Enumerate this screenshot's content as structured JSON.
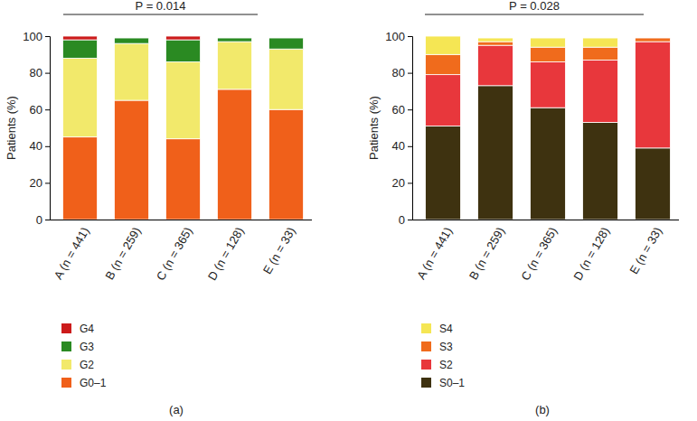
{
  "chart_data": [
    {
      "type": "bar",
      "stacked": true,
      "panel_label": "(a)",
      "annotation": "P = 0.014",
      "y_label": "Patients (%)",
      "categories": [
        "A (n = 441)",
        "B (n = 259)",
        "C (n = 365)",
        "D (n = 128)",
        "E (n = 33)"
      ],
      "series": [
        {
          "name": "G0–1",
          "color": "#f0601a",
          "values": [
            45,
            65,
            44,
            71,
            60
          ]
        },
        {
          "name": "G2",
          "color": "#f2e96b",
          "values": [
            43,
            31,
            42,
            26,
            33
          ]
        },
        {
          "name": "G3",
          "color": "#2a8a22",
          "values": [
            10,
            3,
            12,
            2,
            6
          ]
        },
        {
          "name": "G4",
          "color": "#cc1b1b",
          "values": [
            2,
            0,
            2,
            0,
            0
          ]
        }
      ],
      "ylim": [
        0,
        100
      ],
      "yticks": [
        0,
        20,
        40,
        60,
        80,
        100
      ]
    },
    {
      "type": "bar",
      "stacked": true,
      "panel_label": "(b)",
      "annotation": "P = 0.028",
      "y_label": "Patients (%)",
      "categories": [
        "A (n = 441)",
        "B (n = 259)",
        "C (n = 365)",
        "D (n = 128)",
        "E (n = 33)"
      ],
      "series": [
        {
          "name": "S0–1",
          "color": "#3e3210",
          "values": [
            51,
            73,
            61,
            53,
            39
          ]
        },
        {
          "name": "S2",
          "color": "#e8373c",
          "values": [
            28,
            22,
            25,
            34,
            58
          ]
        },
        {
          "name": "S3",
          "color": "#f06b1c",
          "values": [
            11,
            2,
            8,
            7,
            2
          ]
        },
        {
          "name": "S4",
          "color": "#f5e654",
          "values": [
            10,
            2,
            5,
            5,
            0
          ]
        }
      ],
      "ylim": [
        0,
        100
      ],
      "yticks": [
        0,
        20,
        40,
        60,
        80,
        100
      ]
    }
  ]
}
